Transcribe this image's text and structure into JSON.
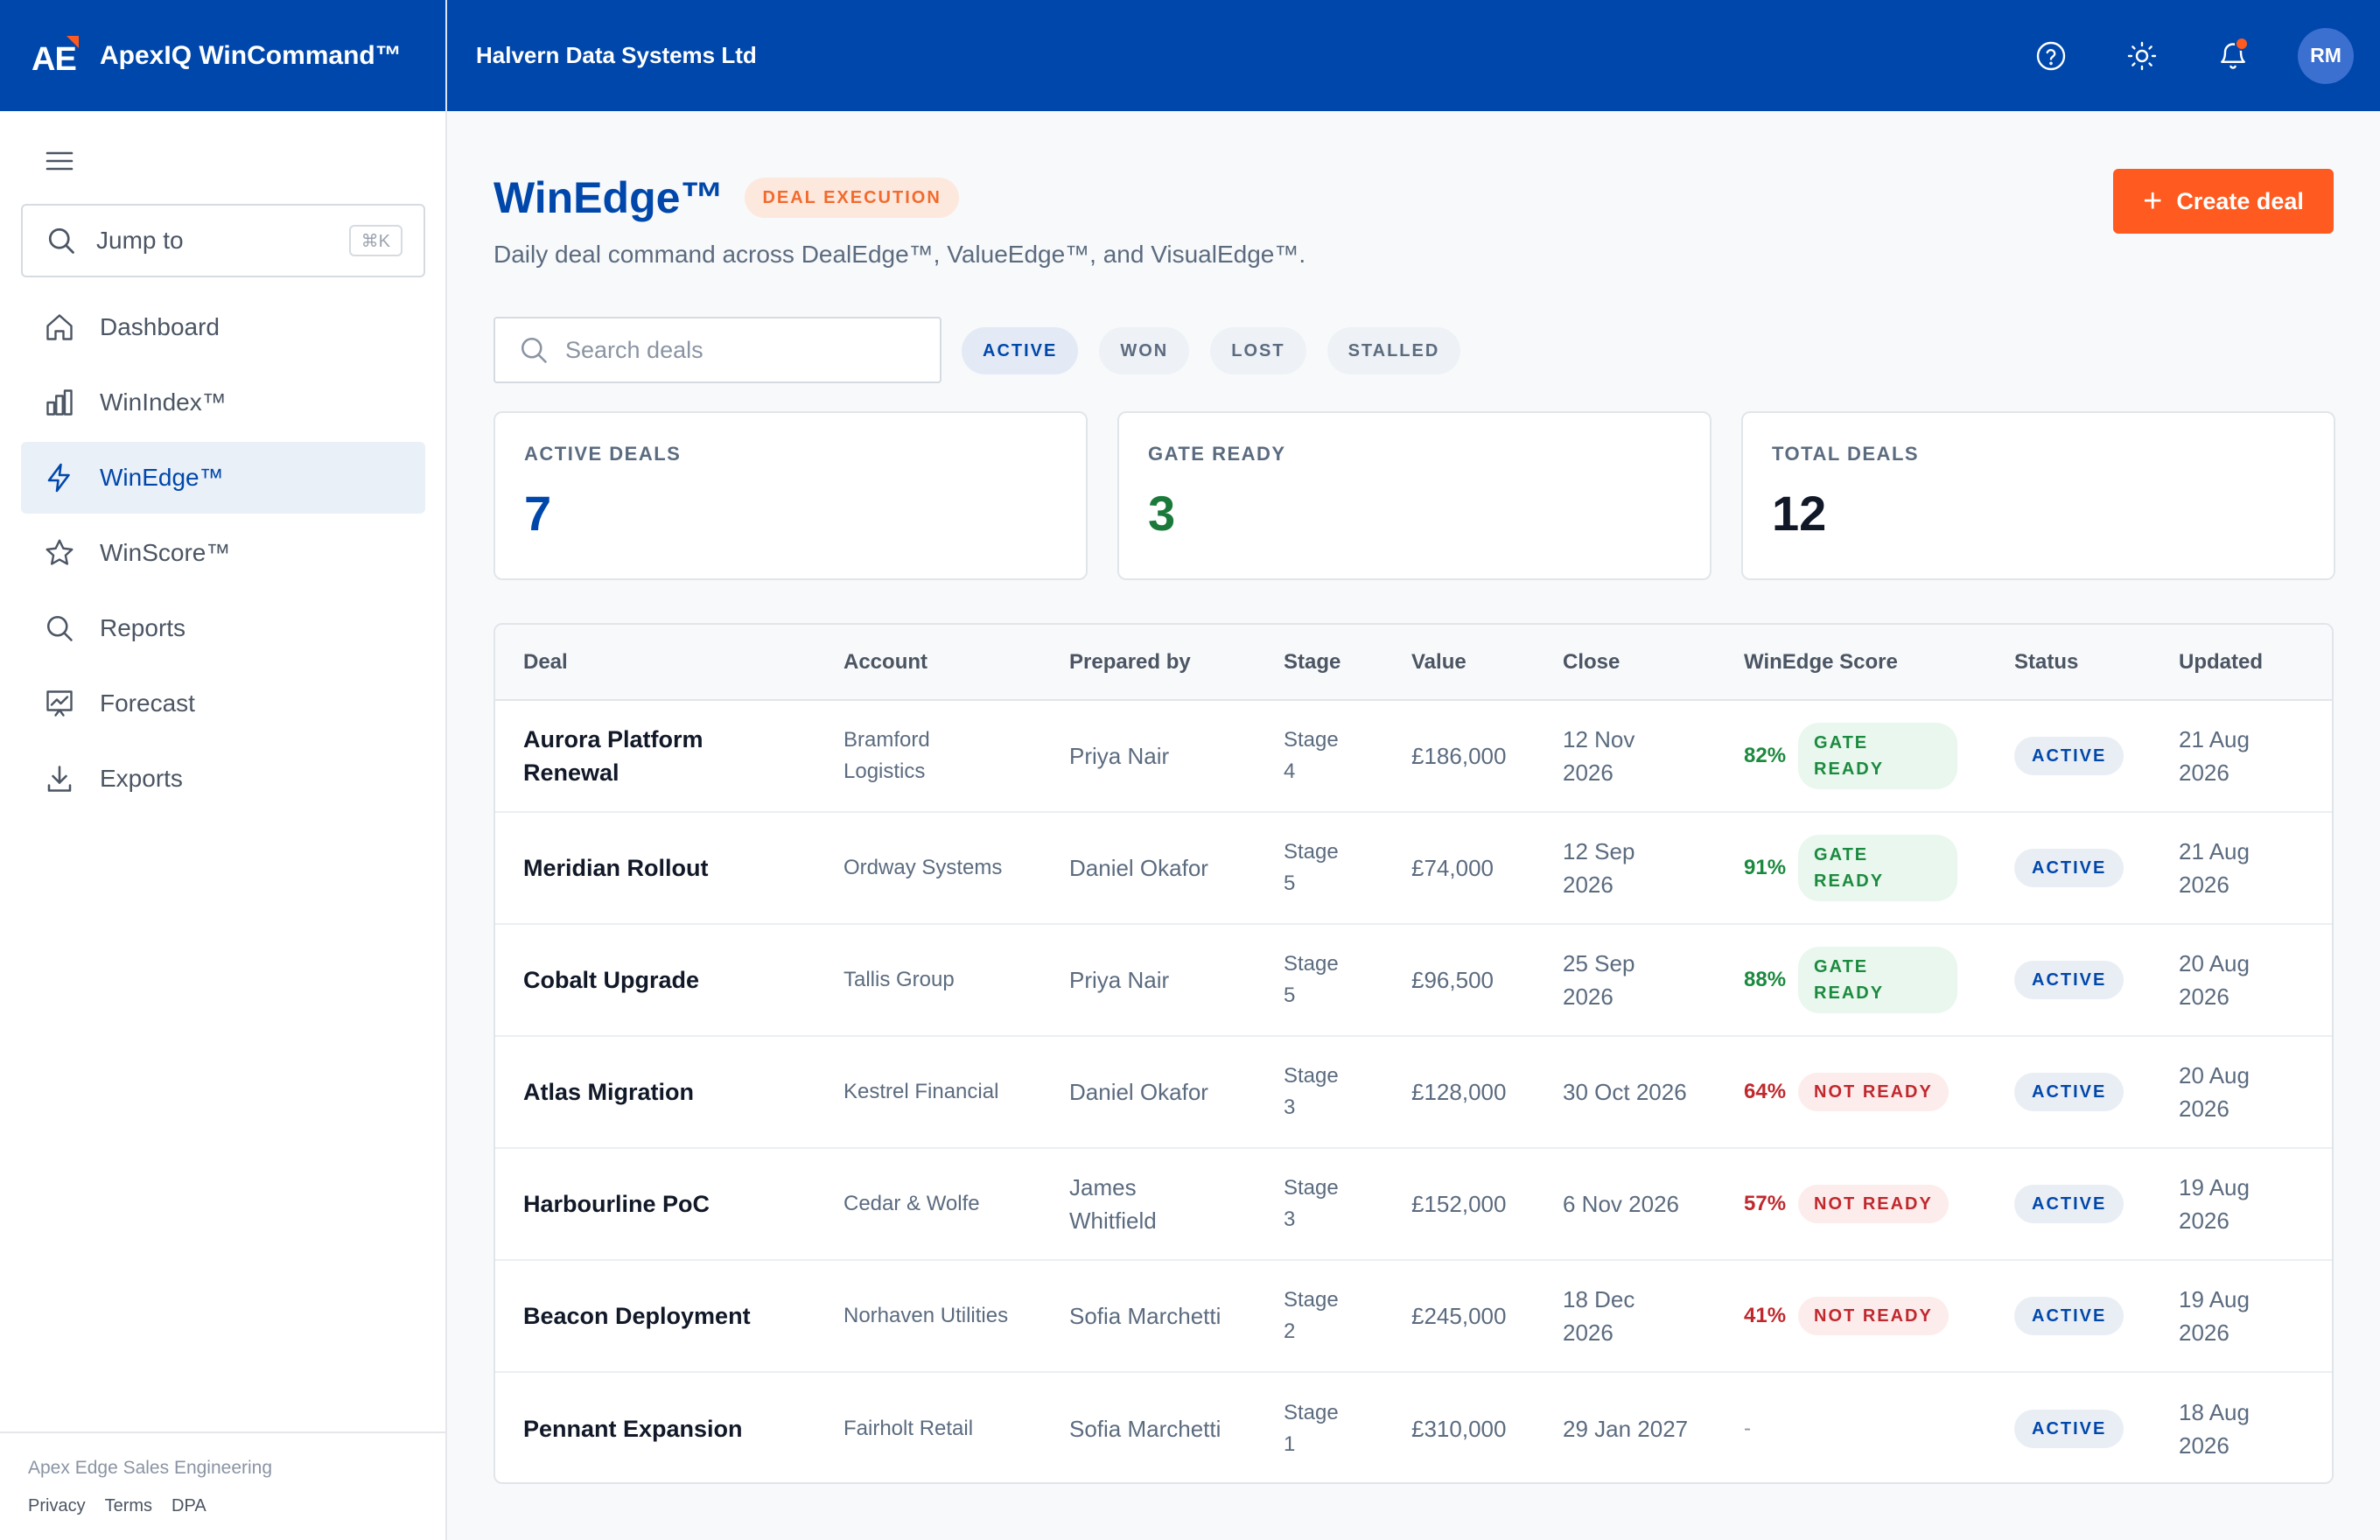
{
  "app": {
    "logo_text": "AE",
    "brand_name": "ApexIQ WinCommand™",
    "org_name": "Halvern Data Systems Ltd",
    "user_initials": "RM",
    "icons": [
      "help-icon",
      "theme-sun-icon",
      "bell-icon"
    ],
    "accent_color": "#0047ab",
    "brand_orange": "#ff5a1f"
  },
  "sidebar": {
    "jump": {
      "label": "Jump to",
      "shortcut": "⌘K"
    },
    "items": [
      {
        "label": "Dashboard",
        "icon": "home-icon",
        "active": false
      },
      {
        "label": "WinIndex™",
        "icon": "bar-chart-icon",
        "active": false
      },
      {
        "label": "WinEdge™",
        "icon": "lightning-icon",
        "active": true
      },
      {
        "label": "WinScore™",
        "icon": "star-icon",
        "active": false
      },
      {
        "label": "Reports",
        "icon": "search-icon",
        "active": false
      },
      {
        "label": "Forecast",
        "icon": "presentation-chart-icon",
        "active": false
      },
      {
        "label": "Exports",
        "icon": "download-icon",
        "active": false
      }
    ],
    "footer": {
      "company": "Apex Edge Sales Engineering",
      "links": [
        "Privacy",
        "Terms",
        "DPA"
      ]
    }
  },
  "main": {
    "title": "WinEdge™",
    "badge": "DEAL EXECUTION",
    "subtitle": "Daily deal command across DealEdge™, ValueEdge™, and VisualEdge™.",
    "create_label": "Create deal",
    "search": {
      "placeholder": "Search deals",
      "value": ""
    },
    "filters": [
      {
        "label": "ACTIVE",
        "active": true
      },
      {
        "label": "WON",
        "active": false
      },
      {
        "label": "LOST",
        "active": false
      },
      {
        "label": "STALLED",
        "active": false
      }
    ],
    "stats": [
      {
        "label": "ACTIVE DEALS",
        "value": "7",
        "color": "#0047ab"
      },
      {
        "label": "GATE READY",
        "value": "3",
        "color": "#1b7a3a"
      },
      {
        "label": "TOTAL DEALS",
        "value": "12",
        "color": "#111827"
      }
    ]
  },
  "table": {
    "columns": [
      "Deal",
      "Account",
      "Prepared by",
      "Stage",
      "Value",
      "Close",
      "WinEdge Score",
      "Status",
      "Updated"
    ],
    "rows": [
      {
        "deal": "Aurora Platform Renewal",
        "account": "Bramford Logistics",
        "prepared_by": "Priya Nair",
        "stage": "Stage 4",
        "value": "£186,000",
        "close": "12 Nov 2026",
        "score": "82%",
        "readiness": "GATE READY",
        "status": "ACTIVE",
        "updated": "21 Aug 2026"
      },
      {
        "deal": "Meridian Rollout",
        "account": "Ordway Systems",
        "prepared_by": "Daniel Okafor",
        "stage": "Stage 5",
        "value": "£74,000",
        "close": "12 Sep 2026",
        "score": "91%",
        "readiness": "GATE READY",
        "status": "ACTIVE",
        "updated": "21 Aug 2026"
      },
      {
        "deal": "Cobalt Upgrade",
        "account": "Tallis Group",
        "prepared_by": "Priya Nair",
        "stage": "Stage 5",
        "value": "£96,500",
        "close": "25 Sep 2026",
        "score": "88%",
        "readiness": "GATE READY",
        "status": "ACTIVE",
        "updated": "20 Aug 2026"
      },
      {
        "deal": "Atlas Migration",
        "account": "Kestrel Financial",
        "prepared_by": "Daniel Okafor",
        "stage": "Stage 3",
        "value": "£128,000",
        "close": "30 Oct 2026",
        "score": "64%",
        "readiness": "NOT READY",
        "status": "ACTIVE",
        "updated": "20 Aug 2026"
      },
      {
        "deal": "Harbourline PoC",
        "account": "Cedar & Wolfe",
        "prepared_by": "James Whitfield",
        "stage": "Stage 3",
        "value": "£152,000",
        "close": "6 Nov 2026",
        "score": "57%",
        "readiness": "NOT READY",
        "status": "ACTIVE",
        "updated": "19 Aug 2026"
      },
      {
        "deal": "Beacon Deployment",
        "account": "Norhaven Utilities",
        "prepared_by": "Sofia Marchetti",
        "stage": "Stage 2",
        "value": "£245,000",
        "close": "18 Dec 2026",
        "score": "41%",
        "readiness": "NOT READY",
        "status": "ACTIVE",
        "updated": "19 Aug 2026"
      },
      {
        "deal": "Pennant Expansion",
        "account": "Fairholt Retail",
        "prepared_by": "Sofia Marchetti",
        "stage": "Stage 1",
        "value": "£310,000",
        "close": "29 Jan 2027",
        "score": "-",
        "readiness": "",
        "status": "ACTIVE",
        "updated": "18 Aug 2026"
      }
    ]
  }
}
